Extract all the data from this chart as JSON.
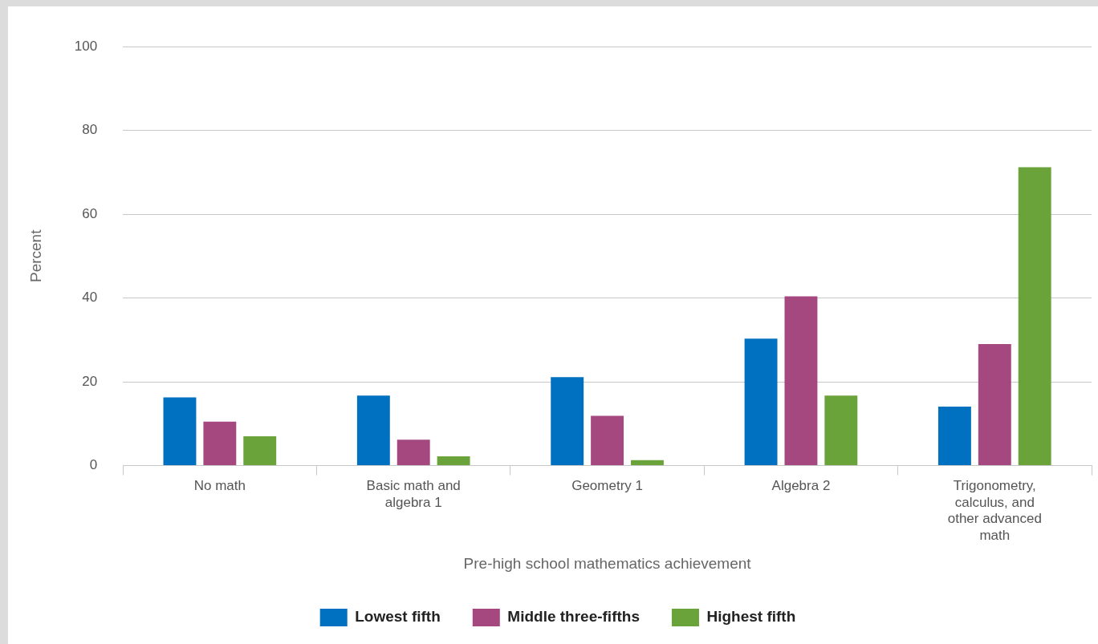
{
  "chart_data": {
    "type": "bar",
    "xlabel": "Pre-high school mathematics achievement",
    "ylabel": "Percent",
    "categories": [
      "No math",
      "Basic math and algebra 1",
      "Geometry 1",
      "Algebra 2",
      "Trigonometry, calculus, and other advanced math"
    ],
    "series": [
      {
        "name": "Lowest fifth",
        "color": "#0070c0",
        "values": [
          16.3,
          16.7,
          21.1,
          30.3,
          14.1
        ]
      },
      {
        "name": "Middle three-fifths",
        "color": "#a5487f",
        "values": [
          10.5,
          6.2,
          11.9,
          40.4,
          29.0
        ]
      },
      {
        "name": "Highest fifth",
        "color": "#6aa33a",
        "values": [
          7.0,
          2.2,
          1.3,
          16.7,
          71.2
        ]
      }
    ],
    "ylim": [
      0,
      100
    ],
    "yticks": [
      0,
      20,
      40,
      60,
      80,
      100
    ],
    "grid": "y",
    "legend": "bottom"
  }
}
